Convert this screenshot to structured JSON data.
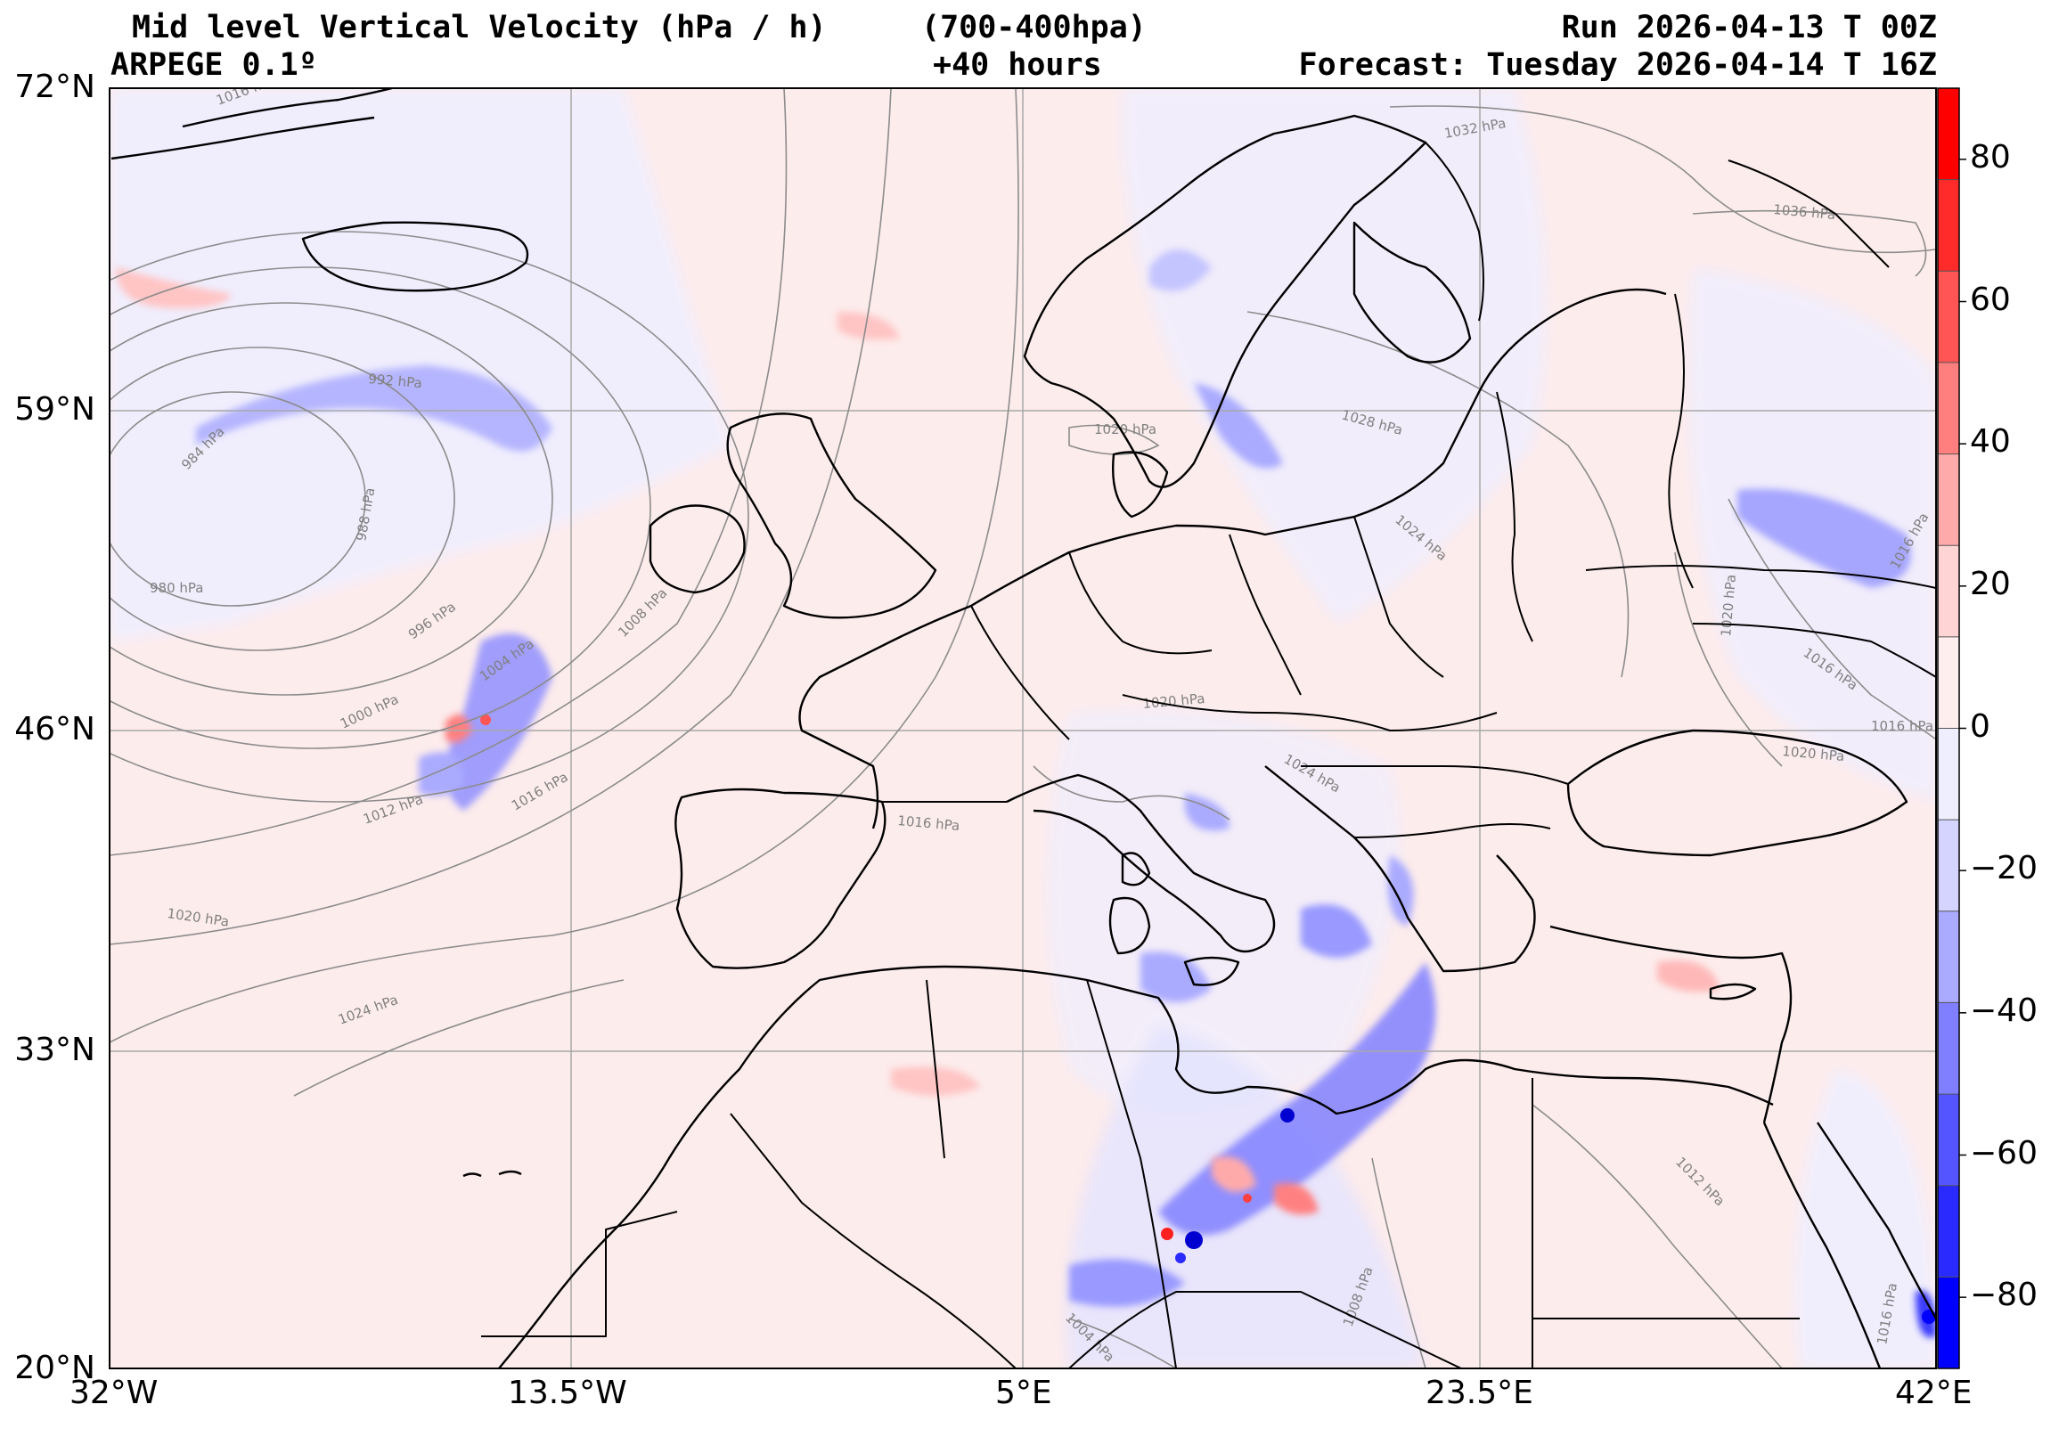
{
  "header": {
    "title": "Mid level Vertical Velocity (hPa / h)",
    "levels": "(700-400hpa)",
    "model": "ARPEGE 0.1º",
    "lead": "+40 hours",
    "run": "Run 2026-04-13 T 00Z",
    "forecast": "Forecast: Tuesday 2026-04-14 T 16Z"
  },
  "axes": {
    "lat_ticks": [
      "72°N",
      "59°N",
      "46°N",
      "33°N",
      "20°N"
    ],
    "lon_ticks": [
      "32°W",
      "13.5°W",
      "5°E",
      "23.5°E",
      "42°E"
    ],
    "lat_values": [
      72,
      59,
      46,
      33,
      20
    ],
    "lon_values": [
      -32,
      -13.5,
      5,
      23.5,
      42
    ]
  },
  "colorbar": {
    "ticks": [
      "80",
      "60",
      "40",
      "20",
      "0",
      "−20",
      "−40",
      "−60",
      "−80"
    ],
    "tick_values": [
      80,
      60,
      40,
      20,
      0,
      -20,
      -40,
      -60,
      -80
    ],
    "range": [
      -90,
      90
    ],
    "colors": [
      "#0000ff",
      "#2a2aff",
      "#5555ff",
      "#7f7fff",
      "#aaaaff",
      "#d4d4ff",
      "#eeeeff",
      "#ffeeee",
      "#ffd4d4",
      "#ffaaaa",
      "#ff7f7f",
      "#ff5555",
      "#ff2a2a",
      "#ff0000"
    ]
  },
  "isobars": [
    {
      "label": "1016 hPa"
    },
    {
      "label": "1032 hPa"
    },
    {
      "label": "1036 hPa"
    },
    {
      "label": "992 hPa"
    },
    {
      "label": "984 hPa"
    },
    {
      "label": "988 hPa"
    },
    {
      "label": "980 hPa"
    },
    {
      "label": "996 hPa"
    },
    {
      "label": "1000 hPa"
    },
    {
      "label": "1004 hPa"
    },
    {
      "label": "1008 hPa"
    },
    {
      "label": "1012 hPa"
    },
    {
      "label": "1016 hPa"
    },
    {
      "label": "1020 hPa"
    },
    {
      "label": "1024 hPa"
    },
    {
      "label": "1020 hPa"
    },
    {
      "label": "1028 hPa"
    },
    {
      "label": "1024 hPa"
    },
    {
      "label": "1020 hPa"
    },
    {
      "label": "1016 hPa"
    },
    {
      "label": "1020 hPa"
    },
    {
      "label": "1016 hPa"
    },
    {
      "label": "1024 hPa"
    },
    {
      "label": "1016 hPa"
    },
    {
      "label": "1020 hPa"
    },
    {
      "label": "1016 hPa"
    },
    {
      "label": "1012 hPa"
    },
    {
      "label": "1008 hPa"
    },
    {
      "label": "1004 hPa"
    },
    {
      "label": "1016 hPa"
    }
  ]
}
